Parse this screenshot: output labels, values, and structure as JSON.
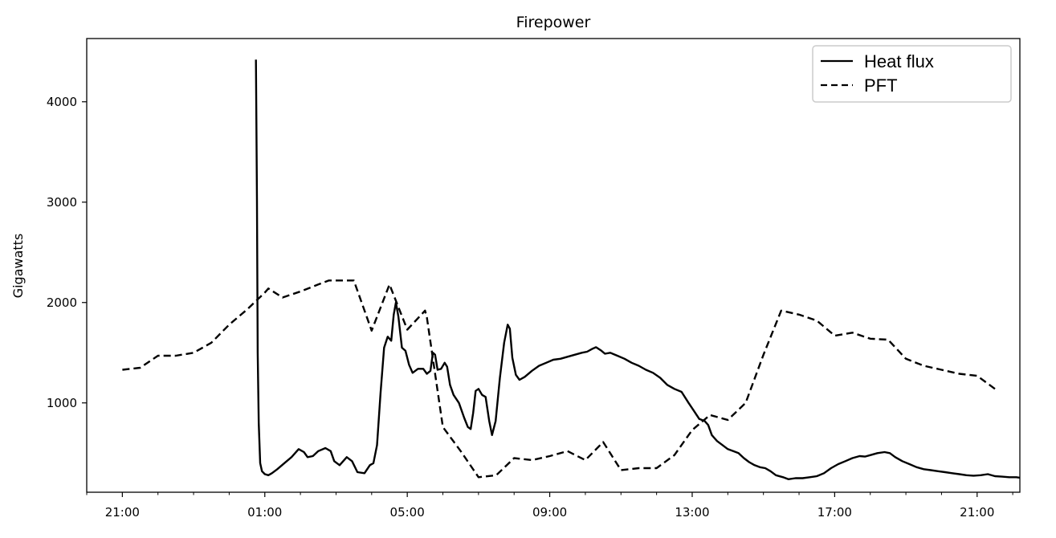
{
  "chart_data": {
    "type": "line",
    "title": "Firepower",
    "xlabel": "",
    "ylabel": "Gigawatts",
    "x_unit": "hours since 21:00",
    "xlim": [
      -1.0,
      25.2
    ],
    "ylim": [
      110,
      4630
    ],
    "xticks": [
      {
        "x": 0,
        "label": "21:00"
      },
      {
        "x": 4,
        "label": "01:00"
      },
      {
        "x": 8,
        "label": "05:00"
      },
      {
        "x": 12,
        "label": "09:00"
      },
      {
        "x": 16,
        "label": "13:00"
      },
      {
        "x": 20,
        "label": "17:00"
      },
      {
        "x": 24,
        "label": "21:00"
      }
    ],
    "minor_xticks": [
      -1,
      1,
      2,
      3,
      5,
      6,
      7,
      9,
      10,
      11,
      13,
      14,
      15,
      17,
      18,
      19,
      21,
      22,
      23,
      25
    ],
    "yticks": [
      1000,
      2000,
      3000,
      4000
    ],
    "grid": false,
    "legend": {
      "position": "top-right"
    },
    "series": [
      {
        "name": "Heat flux",
        "style": "solid",
        "color": "#000000",
        "points": [
          [
            3.75,
            4420
          ],
          [
            3.78,
            3000
          ],
          [
            3.8,
            1500
          ],
          [
            3.83,
            800
          ],
          [
            3.87,
            400
          ],
          [
            3.92,
            320
          ],
          [
            4.0,
            290
          ],
          [
            4.1,
            280
          ],
          [
            4.2,
            300
          ],
          [
            4.35,
            340
          ],
          [
            4.55,
            400
          ],
          [
            4.75,
            460
          ],
          [
            4.95,
            540
          ],
          [
            5.1,
            510
          ],
          [
            5.2,
            460
          ],
          [
            5.35,
            470
          ],
          [
            5.5,
            520
          ],
          [
            5.7,
            550
          ],
          [
            5.85,
            520
          ],
          [
            5.95,
            420
          ],
          [
            6.1,
            380
          ],
          [
            6.3,
            460
          ],
          [
            6.45,
            420
          ],
          [
            6.6,
            310
          ],
          [
            6.8,
            300
          ],
          [
            6.95,
            380
          ],
          [
            7.05,
            400
          ],
          [
            7.15,
            580
          ],
          [
            7.25,
            1100
          ],
          [
            7.35,
            1550
          ],
          [
            7.45,
            1660
          ],
          [
            7.55,
            1620
          ],
          [
            7.62,
            1880
          ],
          [
            7.68,
            2000
          ],
          [
            7.75,
            1860
          ],
          [
            7.85,
            1550
          ],
          [
            7.95,
            1520
          ],
          [
            8.05,
            1380
          ],
          [
            8.15,
            1300
          ],
          [
            8.3,
            1340
          ],
          [
            8.45,
            1340
          ],
          [
            8.55,
            1290
          ],
          [
            8.65,
            1320
          ],
          [
            8.72,
            1500
          ],
          [
            8.78,
            1480
          ],
          [
            8.85,
            1330
          ],
          [
            8.95,
            1340
          ],
          [
            9.05,
            1400
          ],
          [
            9.12,
            1360
          ],
          [
            9.2,
            1180
          ],
          [
            9.3,
            1080
          ],
          [
            9.45,
            1000
          ],
          [
            9.6,
            850
          ],
          [
            9.7,
            760
          ],
          [
            9.78,
            740
          ],
          [
            9.85,
            900
          ],
          [
            9.92,
            1120
          ],
          [
            10.0,
            1140
          ],
          [
            10.1,
            1080
          ],
          [
            10.2,
            1060
          ],
          [
            10.3,
            820
          ],
          [
            10.38,
            680
          ],
          [
            10.48,
            820
          ],
          [
            10.6,
            1250
          ],
          [
            10.72,
            1600
          ],
          [
            10.82,
            1780
          ],
          [
            10.88,
            1740
          ],
          [
            10.95,
            1450
          ],
          [
            11.05,
            1280
          ],
          [
            11.15,
            1230
          ],
          [
            11.3,
            1260
          ],
          [
            11.5,
            1320
          ],
          [
            11.7,
            1370
          ],
          [
            11.9,
            1400
          ],
          [
            12.1,
            1430
          ],
          [
            12.3,
            1440
          ],
          [
            12.5,
            1460
          ],
          [
            12.7,
            1480
          ],
          [
            12.9,
            1500
          ],
          [
            13.05,
            1510
          ],
          [
            13.2,
            1540
          ],
          [
            13.3,
            1555
          ],
          [
            13.45,
            1520
          ],
          [
            13.55,
            1490
          ],
          [
            13.7,
            1500
          ],
          [
            13.9,
            1470
          ],
          [
            14.1,
            1440
          ],
          [
            14.3,
            1400
          ],
          [
            14.5,
            1370
          ],
          [
            14.7,
            1330
          ],
          [
            14.9,
            1300
          ],
          [
            15.1,
            1250
          ],
          [
            15.3,
            1180
          ],
          [
            15.5,
            1140
          ],
          [
            15.7,
            1110
          ],
          [
            15.9,
            1000
          ],
          [
            16.05,
            920
          ],
          [
            16.2,
            840
          ],
          [
            16.35,
            820
          ],
          [
            16.45,
            780
          ],
          [
            16.55,
            680
          ],
          [
            16.7,
            620
          ],
          [
            16.85,
            580
          ],
          [
            17.0,
            540
          ],
          [
            17.15,
            520
          ],
          [
            17.3,
            500
          ],
          [
            17.45,
            450
          ],
          [
            17.6,
            410
          ],
          [
            17.75,
            380
          ],
          [
            17.9,
            360
          ],
          [
            18.05,
            350
          ],
          [
            18.2,
            320
          ],
          [
            18.35,
            280
          ],
          [
            18.55,
            260
          ],
          [
            18.7,
            240
          ],
          [
            18.9,
            250
          ],
          [
            19.1,
            250
          ],
          [
            19.3,
            260
          ],
          [
            19.5,
            270
          ],
          [
            19.7,
            300
          ],
          [
            19.9,
            350
          ],
          [
            20.1,
            390
          ],
          [
            20.3,
            420
          ],
          [
            20.5,
            450
          ],
          [
            20.7,
            470
          ],
          [
            20.85,
            465
          ],
          [
            21.0,
            480
          ],
          [
            21.2,
            500
          ],
          [
            21.4,
            510
          ],
          [
            21.55,
            500
          ],
          [
            21.7,
            460
          ],
          [
            21.9,
            420
          ],
          [
            22.1,
            390
          ],
          [
            22.3,
            360
          ],
          [
            22.5,
            340
          ],
          [
            22.7,
            330
          ],
          [
            22.9,
            320
          ],
          [
            23.1,
            310
          ],
          [
            23.3,
            300
          ],
          [
            23.5,
            290
          ],
          [
            23.7,
            280
          ],
          [
            23.9,
            275
          ],
          [
            24.1,
            280
          ],
          [
            24.3,
            290
          ],
          [
            24.5,
            270
          ],
          [
            24.7,
            265
          ],
          [
            24.9,
            260
          ],
          [
            25.1,
            260
          ],
          [
            25.3,
            250
          ],
          [
            25.5,
            245
          ],
          [
            25.7,
            240
          ],
          [
            25.9,
            235
          ],
          [
            26.1,
            235
          ],
          [
            26.3,
            230
          ],
          [
            26.5,
            222
          ],
          [
            26.7,
            225
          ],
          [
            26.9,
            240
          ],
          [
            27.0,
            235
          ],
          [
            27.1,
            232
          ]
        ]
      },
      {
        "name": "PFT",
        "style": "dashed",
        "color": "#000000",
        "points": [
          [
            0.0,
            1330
          ],
          [
            0.5,
            1350
          ],
          [
            1.0,
            1470
          ],
          [
            1.5,
            1470
          ],
          [
            2.0,
            1500
          ],
          [
            2.5,
            1600
          ],
          [
            3.0,
            1780
          ],
          [
            3.5,
            1930
          ],
          [
            4.0,
            2100
          ],
          [
            4.1,
            2140
          ],
          [
            4.5,
            2050
          ],
          [
            5.0,
            2110
          ],
          [
            5.5,
            2180
          ],
          [
            5.8,
            2220
          ],
          [
            6.5,
            2220
          ],
          [
            7.0,
            1720
          ],
          [
            7.5,
            2180
          ],
          [
            8.0,
            1730
          ],
          [
            8.5,
            1920
          ],
          [
            8.55,
            1850
          ],
          [
            9.0,
            760
          ],
          [
            9.5,
            520
          ],
          [
            10.0,
            260
          ],
          [
            10.5,
            280
          ],
          [
            11.0,
            450
          ],
          [
            11.5,
            430
          ],
          [
            12.0,
            470
          ],
          [
            12.5,
            520
          ],
          [
            13.0,
            430
          ],
          [
            13.5,
            610
          ],
          [
            14.0,
            330
          ],
          [
            14.5,
            350
          ],
          [
            15.0,
            350
          ],
          [
            15.5,
            480
          ],
          [
            16.0,
            730
          ],
          [
            16.5,
            880
          ],
          [
            17.0,
            830
          ],
          [
            17.5,
            1000
          ],
          [
            18.0,
            1480
          ],
          [
            18.5,
            1920
          ],
          [
            19.0,
            1880
          ],
          [
            19.5,
            1820
          ],
          [
            20.0,
            1670
          ],
          [
            20.5,
            1700
          ],
          [
            21.0,
            1640
          ],
          [
            21.5,
            1630
          ],
          [
            22.0,
            1440
          ],
          [
            22.5,
            1370
          ],
          [
            23.0,
            1330
          ],
          [
            23.5,
            1290
          ],
          [
            24.0,
            1270
          ],
          [
            24.5,
            1140
          ]
        ]
      }
    ]
  }
}
